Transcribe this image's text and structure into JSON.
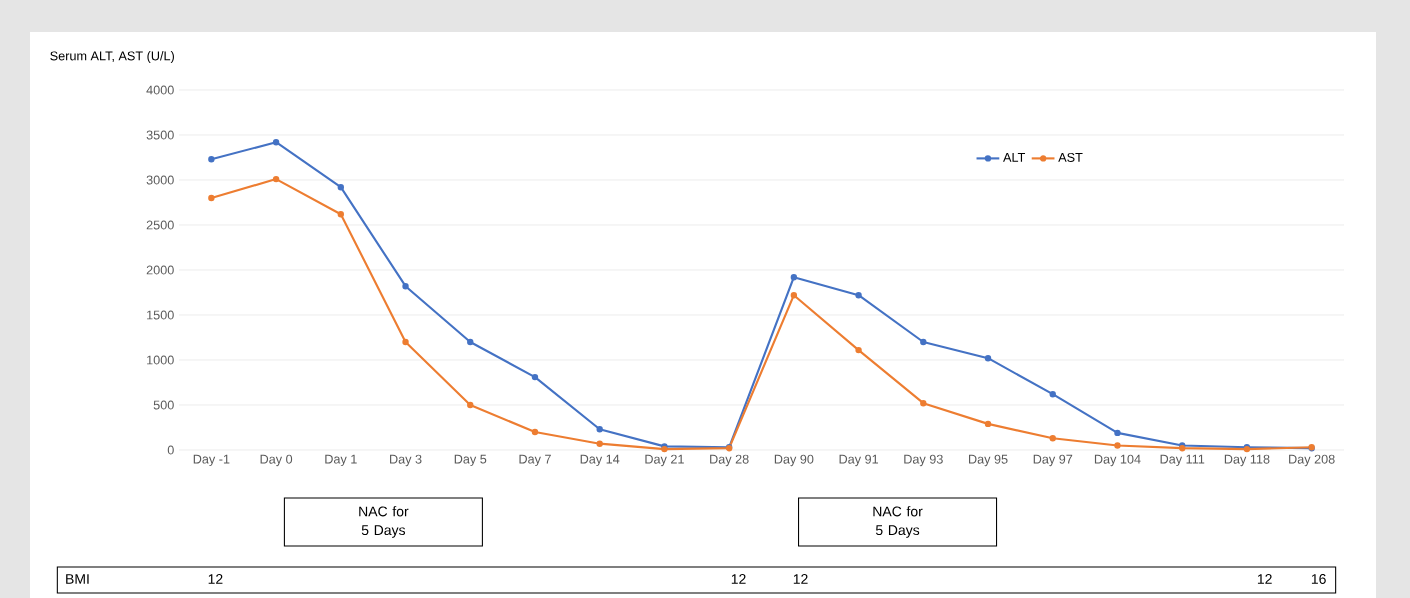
{
  "chart_data": {
    "type": "line",
    "ylabel": "Serum ALT, AST (U/L)",
    "categories": [
      "Day -1",
      "Day 0",
      "Day 1",
      "Day 3",
      "Day 5",
      "Day 7",
      "Day 14",
      "Day 21",
      "Day 28",
      "Day 90",
      "Day 91",
      "Day 93",
      "Day 95",
      "Day 97",
      "Day 104",
      "Day 111",
      "Day 118",
      "Day 208"
    ],
    "series": [
      {
        "name": "ALT",
        "color": "#4472c4",
        "values": [
          3230,
          3420,
          2920,
          1820,
          1200,
          810,
          230,
          40,
          30,
          1920,
          1720,
          1200,
          1020,
          620,
          190,
          50,
          30,
          20
        ]
      },
      {
        "name": "AST",
        "color": "#ed7d31",
        "values": [
          2800,
          3010,
          2620,
          1200,
          500,
          200,
          70,
          10,
          20,
          1720,
          1110,
          520,
          290,
          130,
          50,
          20,
          10,
          30
        ]
      }
    ],
    "ylim": [
      0,
      4000
    ],
    "yticks": [
      0,
      500,
      1000,
      1500,
      2000,
      2500,
      3000,
      3500,
      4000
    ],
    "grid": "y",
    "legend": "top right",
    "marker": "circle",
    "line_style": "solid",
    "annotations": [
      "NAC for 5 Days",
      "NAC for 5 Days",
      "BMI",
      "12",
      "12",
      "12",
      "12",
      "16"
    ]
  }
}
